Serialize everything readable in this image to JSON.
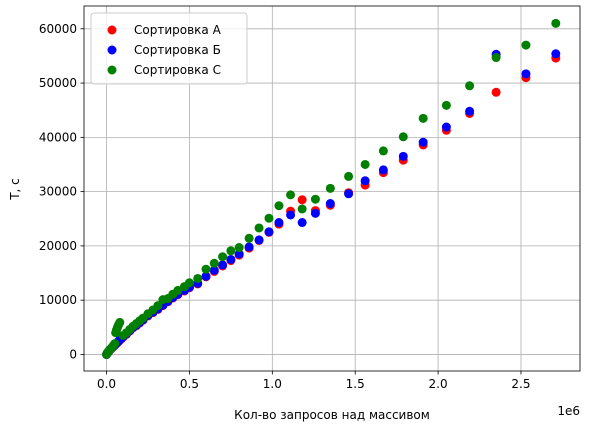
{
  "chart_data": {
    "type": "scatter",
    "xlabel": "Кол-во запросов над массивом",
    "ylabel": "T, c",
    "x_offset_label": "1e6",
    "xlim": [
      -0.136,
      2.856
    ],
    "ylim": [
      -3050,
      64200
    ],
    "x_ticks": [
      0.0,
      0.5,
      1.0,
      1.5,
      2.0,
      2.5
    ],
    "x_tick_labels": [
      "0.0",
      "0.5",
      "1.0",
      "1.5",
      "2.0",
      "2.5"
    ],
    "y_ticks": [
      0,
      10000,
      20000,
      30000,
      40000,
      50000,
      60000
    ],
    "y_tick_labels": [
      "0",
      "10000",
      "20000",
      "30000",
      "40000",
      "50000",
      "60000"
    ],
    "grid": true,
    "legend_position": "top-left",
    "series": [
      {
        "name": "Сортировка А",
        "color": "#ff0000",
        "points": [
          [
            0.0,
            0
          ],
          [
            0.005,
            200
          ],
          [
            0.01,
            400
          ],
          [
            0.015,
            600
          ],
          [
            0.02,
            800
          ],
          [
            0.03,
            1100
          ],
          [
            0.04,
            1400
          ],
          [
            0.05,
            1700
          ],
          [
            0.06,
            2000
          ],
          [
            0.07,
            2300
          ],
          [
            0.08,
            2600
          ],
          [
            0.09,
            2900
          ],
          [
            0.1,
            3200
          ],
          [
            0.12,
            3700
          ],
          [
            0.14,
            4300
          ],
          [
            0.16,
            4900
          ],
          [
            0.18,
            5300
          ],
          [
            0.2,
            5800
          ],
          [
            0.22,
            6300
          ],
          [
            0.25,
            7100
          ],
          [
            0.28,
            7700
          ],
          [
            0.31,
            8300
          ],
          [
            0.34,
            9000
          ],
          [
            0.37,
            9700
          ],
          [
            0.4,
            10400
          ],
          [
            0.43,
            11000
          ],
          [
            0.47,
            11700
          ],
          [
            0.5,
            12300
          ],
          [
            0.55,
            13000
          ],
          [
            0.6,
            14300
          ],
          [
            0.65,
            15300
          ],
          [
            0.7,
            16300
          ],
          [
            0.75,
            17300
          ],
          [
            0.8,
            18300
          ],
          [
            0.86,
            19600
          ],
          [
            0.92,
            21000
          ],
          [
            0.98,
            22500
          ],
          [
            1.04,
            24000
          ],
          [
            1.11,
            26400
          ],
          [
            1.18,
            28500
          ],
          [
            1.26,
            26500
          ],
          [
            1.35,
            27500
          ],
          [
            1.46,
            29800
          ],
          [
            1.56,
            31200
          ],
          [
            1.67,
            33500
          ],
          [
            1.79,
            35800
          ],
          [
            1.91,
            38600
          ],
          [
            2.05,
            41300
          ],
          [
            2.19,
            44400
          ],
          [
            2.35,
            48300
          ],
          [
            2.53,
            51000
          ],
          [
            2.71,
            54600
          ]
        ]
      },
      {
        "name": "Сортировка Б",
        "color": "#0000ff",
        "points": [
          [
            0.0,
            0
          ],
          [
            0.005,
            250
          ],
          [
            0.01,
            450
          ],
          [
            0.015,
            650
          ],
          [
            0.02,
            850
          ],
          [
            0.03,
            1150
          ],
          [
            0.04,
            1450
          ],
          [
            0.05,
            1750
          ],
          [
            0.06,
            2050
          ],
          [
            0.07,
            2350
          ],
          [
            0.08,
            2700
          ],
          [
            0.09,
            3000
          ],
          [
            0.1,
            3300
          ],
          [
            0.12,
            3800
          ],
          [
            0.14,
            4400
          ],
          [
            0.16,
            5000
          ],
          [
            0.18,
            5400
          ],
          [
            0.2,
            5900
          ],
          [
            0.22,
            6400
          ],
          [
            0.25,
            7200
          ],
          [
            0.28,
            7800
          ],
          [
            0.31,
            8400
          ],
          [
            0.34,
            9100
          ],
          [
            0.37,
            9800
          ],
          [
            0.4,
            10500
          ],
          [
            0.43,
            11100
          ],
          [
            0.47,
            11800
          ],
          [
            0.5,
            12400
          ],
          [
            0.55,
            13100
          ],
          [
            0.6,
            14400
          ],
          [
            0.65,
            15500
          ],
          [
            0.7,
            16500
          ],
          [
            0.75,
            17500
          ],
          [
            0.8,
            18500
          ],
          [
            0.86,
            19800
          ],
          [
            0.92,
            21100
          ],
          [
            0.98,
            22600
          ],
          [
            1.04,
            24300
          ],
          [
            1.11,
            25700
          ],
          [
            1.18,
            24300
          ],
          [
            1.26,
            26000
          ],
          [
            1.35,
            27800
          ],
          [
            1.46,
            29600
          ],
          [
            1.56,
            32000
          ],
          [
            1.67,
            34000
          ],
          [
            1.79,
            36500
          ],
          [
            1.91,
            39100
          ],
          [
            2.05,
            41900
          ],
          [
            2.19,
            44800
          ],
          [
            2.35,
            55300
          ],
          [
            2.53,
            51700
          ],
          [
            2.71,
            55400
          ]
        ]
      },
      {
        "name": "Сортировка С",
        "color": "#008000",
        "points": [
          [
            0.0,
            0
          ],
          [
            0.005,
            300
          ],
          [
            0.01,
            500
          ],
          [
            0.015,
            700
          ],
          [
            0.02,
            900
          ],
          [
            0.03,
            1200
          ],
          [
            0.04,
            1600
          ],
          [
            0.05,
            2000
          ],
          [
            0.055,
            4000
          ],
          [
            0.06,
            4500
          ],
          [
            0.065,
            4900
          ],
          [
            0.07,
            5300
          ],
          [
            0.075,
            5600
          ],
          [
            0.08,
            5900
          ],
          [
            0.1,
            3500
          ],
          [
            0.12,
            4000
          ],
          [
            0.14,
            4600
          ],
          [
            0.16,
            5200
          ],
          [
            0.18,
            5700
          ],
          [
            0.2,
            6200
          ],
          [
            0.22,
            6700
          ],
          [
            0.25,
            7500
          ],
          [
            0.28,
            8200
          ],
          [
            0.31,
            9000
          ],
          [
            0.34,
            10100
          ],
          [
            0.37,
            10300
          ],
          [
            0.4,
            11100
          ],
          [
            0.43,
            11800
          ],
          [
            0.47,
            12500
          ],
          [
            0.5,
            13200
          ],
          [
            0.55,
            14000
          ],
          [
            0.6,
            15700
          ],
          [
            0.65,
            16800
          ],
          [
            0.7,
            18000
          ],
          [
            0.75,
            19100
          ],
          [
            0.8,
            19700
          ],
          [
            0.86,
            21400
          ],
          [
            0.92,
            23300
          ],
          [
            0.98,
            25100
          ],
          [
            1.04,
            27400
          ],
          [
            1.11,
            29400
          ],
          [
            1.18,
            26800
          ],
          [
            1.26,
            28600
          ],
          [
            1.35,
            30600
          ],
          [
            1.46,
            32800
          ],
          [
            1.56,
            35000
          ],
          [
            1.67,
            37500
          ],
          [
            1.79,
            40100
          ],
          [
            1.91,
            43500
          ],
          [
            2.05,
            45900
          ],
          [
            2.19,
            49500
          ],
          [
            2.35,
            54700
          ],
          [
            2.53,
            57000
          ],
          [
            2.71,
            61000
          ]
        ]
      }
    ]
  }
}
